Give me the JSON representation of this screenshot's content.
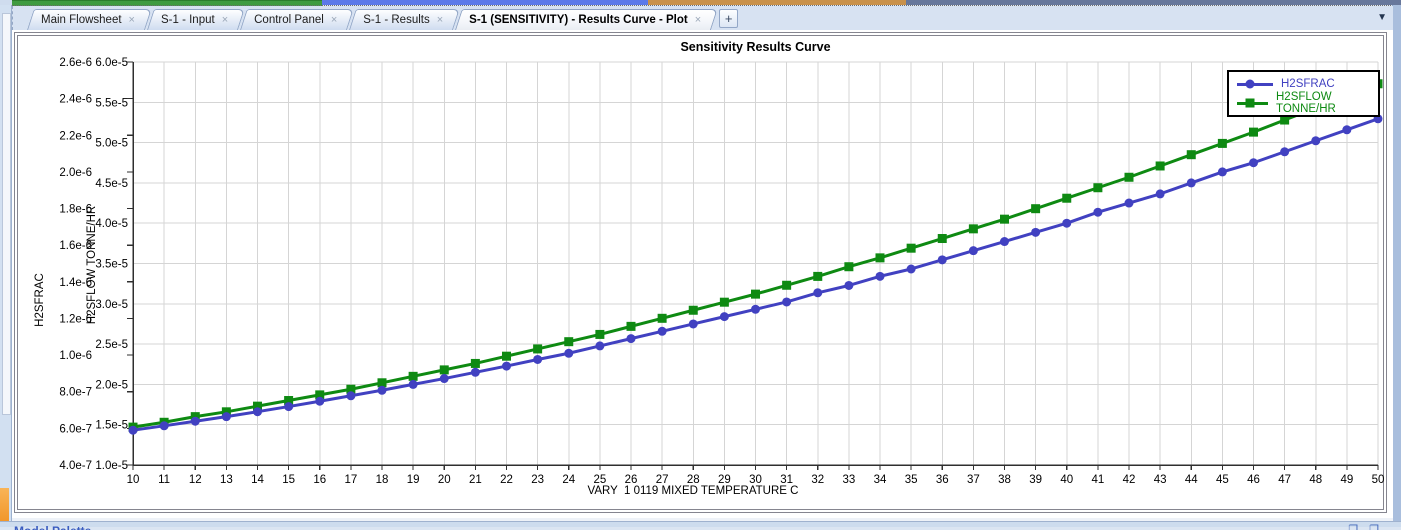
{
  "tabs": {
    "items": [
      {
        "label": "Main Flowsheet",
        "active": false
      },
      {
        "label": "S-1 - Input",
        "active": false
      },
      {
        "label": "Control Panel",
        "active": false
      },
      {
        "label": "S-1 - Results",
        "active": false
      },
      {
        "label": "S-1 (SENSITIVITY) - Results Curve - Plot",
        "active": true
      }
    ],
    "close_glyph": "×",
    "new_tab_label": "+",
    "overflow_icon": "▼"
  },
  "statusbar": {
    "left_text": "Model Palette",
    "right_icons": [
      "window-icon",
      "window-icon"
    ],
    "icon_glyph": "❐"
  },
  "chart_data": {
    "type": "line",
    "title": "Sensitivity Results Curve",
    "xlabel": "VARY  1 0119 MIXED TEMPERATURE C",
    "xlim": [
      10,
      50
    ],
    "x": [
      10,
      11,
      12,
      13,
      14,
      15,
      16,
      17,
      18,
      19,
      20,
      21,
      22,
      23,
      24,
      25,
      26,
      27,
      28,
      29,
      30,
      31,
      32,
      33,
      34,
      35,
      36,
      37,
      38,
      39,
      40,
      41,
      42,
      43,
      44,
      45,
      46,
      47,
      48,
      49,
      50
    ],
    "xticks": [
      "10",
      "11",
      "12",
      "13",
      "14",
      "15",
      "16",
      "17",
      "18",
      "19",
      "20",
      "21",
      "22",
      "23",
      "24",
      "25",
      "26",
      "27",
      "28",
      "29",
      "30",
      "31",
      "32",
      "33",
      "34",
      "35",
      "36",
      "37",
      "38",
      "39",
      "40",
      "41",
      "42",
      "43",
      "44",
      "45",
      "46",
      "47",
      "48",
      "49",
      "50"
    ],
    "grid": true,
    "legend_position": "top-right",
    "left_axis": {
      "label": "H2SFRAC",
      "min": 4e-07,
      "max": 2.6e-06,
      "ticks": [
        "2.6e-6",
        "2.4e-6",
        "2.2e-6",
        "2.0e-6",
        "1.8e-6",
        "1.6e-6",
        "1.4e-6",
        "1.2e-6",
        "1.0e-6",
        "8.0e-7",
        "6.0e-7",
        "4.0e-7"
      ]
    },
    "flow_axis": {
      "label": "H2SFLOW TONNE/HR",
      "min": 1e-05,
      "max": 6e-05,
      "ticks": [
        "6.0e-5",
        "5.5e-5",
        "5.0e-5",
        "4.5e-5",
        "4.0e-5",
        "3.5e-5",
        "3.0e-5",
        "2.5e-5",
        "2.0e-5",
        "1.5e-5",
        "1.0e-5"
      ]
    },
    "series": [
      {
        "name": "H2SFLOW TONNE/HR",
        "axis": "flow",
        "color": "#0e8a12",
        "marker": "square",
        "values": [
          1.47e-05,
          1.53e-05,
          1.6e-05,
          1.66e-05,
          1.73e-05,
          1.8e-05,
          1.87e-05,
          1.94e-05,
          2.02e-05,
          2.1e-05,
          2.18e-05,
          2.26e-05,
          2.35e-05,
          2.44e-05,
          2.53e-05,
          2.62e-05,
          2.72e-05,
          2.82e-05,
          2.92e-05,
          3.02e-05,
          3.12e-05,
          3.23e-05,
          3.34e-05,
          3.46e-05,
          3.57e-05,
          3.69e-05,
          3.81e-05,
          3.93e-05,
          4.05e-05,
          4.18e-05,
          4.31e-05,
          4.44e-05,
          4.57e-05,
          4.71e-05,
          4.85e-05,
          4.99e-05,
          5.13e-05,
          5.28e-05,
          5.43e-05,
          5.58e-05,
          5.73e-05
        ]
      },
      {
        "name": "H2SFRAC",
        "axis": "left",
        "color": "#4141c1",
        "marker": "circle",
        "values": [
          5.9e-07,
          6.14e-07,
          6.39e-07,
          6.64e-07,
          6.91e-07,
          7.19e-07,
          7.48e-07,
          7.78e-07,
          8.08e-07,
          8.4e-07,
          8.72e-07,
          9.06e-07,
          9.4e-07,
          9.76e-07,
          1.01e-06,
          1.05e-06,
          1.09e-06,
          1.13e-06,
          1.17e-06,
          1.21e-06,
          1.25e-06,
          1.29e-06,
          1.34e-06,
          1.38e-06,
          1.43e-06,
          1.47e-06,
          1.52e-06,
          1.57e-06,
          1.62e-06,
          1.67e-06,
          1.72e-06,
          1.78e-06,
          1.83e-06,
          1.88e-06,
          1.94e-06,
          2e-06,
          2.05e-06,
          2.11e-06,
          2.17e-06,
          2.23e-06,
          2.29e-06
        ]
      }
    ],
    "legend_order": [
      "H2SFRAC",
      "H2SFLOW TONNE/HR"
    ]
  }
}
